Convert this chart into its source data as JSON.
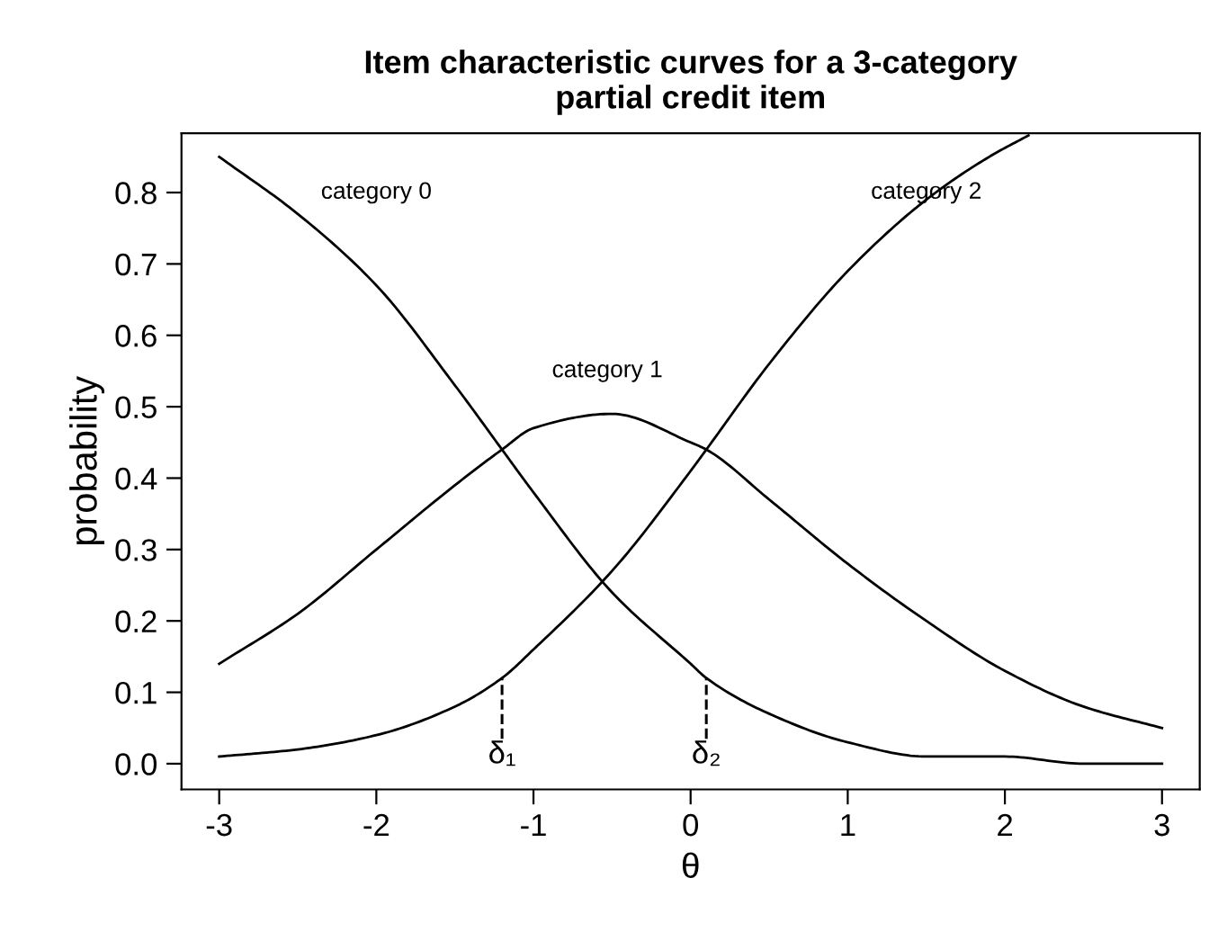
{
  "chart_data": {
    "type": "line",
    "title": "Item characteristic curves for a 3-category\npartial credit item",
    "xlabel": "θ",
    "ylabel": "probability",
    "series": [
      {
        "name": "category 0",
        "color": "#000000",
        "x": [
          -3,
          -2.5,
          -2,
          -1.5,
          -1.2,
          -1,
          -0.5,
          0,
          0.1,
          0.5,
          1,
          1.5,
          2,
          2.5,
          3
        ],
        "values": [
          0.85,
          0.77,
          0.67,
          0.53,
          0.44,
          0.38,
          0.24,
          0.14,
          0.12,
          0.07,
          0.03,
          0.01,
          0.01,
          0.0,
          0.0
        ]
      },
      {
        "name": "category 1",
        "color": "#000000",
        "x": [
          -3,
          -2.5,
          -2,
          -1.5,
          -1.2,
          -1,
          -0.5,
          0,
          0.1,
          0.5,
          1,
          1.5,
          2,
          2.5,
          3
        ],
        "values": [
          0.14,
          0.21,
          0.3,
          0.39,
          0.44,
          0.47,
          0.49,
          0.45,
          0.44,
          0.37,
          0.28,
          0.2,
          0.13,
          0.08,
          0.05
        ]
      },
      {
        "name": "category 2",
        "color": "#000000",
        "x": [
          -3,
          -2.5,
          -2,
          -1.5,
          -1.2,
          -1,
          -0.5,
          0,
          0.1,
          0.5,
          1,
          1.5,
          1.9,
          2.15
        ],
        "values": [
          0.01,
          0.02,
          0.04,
          0.08,
          0.12,
          0.16,
          0.27,
          0.41,
          0.44,
          0.56,
          0.69,
          0.79,
          0.85,
          0.88
        ]
      }
    ],
    "ref_lines": [
      {
        "axis": "x",
        "value": -1.2,
        "label": "δ₁",
        "line_style": "dashed",
        "color": "#000000"
      },
      {
        "axis": "x",
        "value": 0.1,
        "label": "δ₂",
        "line_style": "dashed",
        "color": "#000000"
      }
    ],
    "xlim": [
      -3.24,
      3.24
    ],
    "ylim": [
      -0.036,
      0.883
    ],
    "xticks": [
      -3,
      -2,
      -1,
      0,
      1,
      2,
      3
    ],
    "yticks": [
      {
        "value": 0,
        "label": "0.0"
      },
      0.1,
      0.2,
      0.3,
      0.4,
      0.5,
      0.6,
      0.7,
      0.8
    ],
    "grid": false,
    "legend": false,
    "marker": "none",
    "line_style": "solid"
  }
}
